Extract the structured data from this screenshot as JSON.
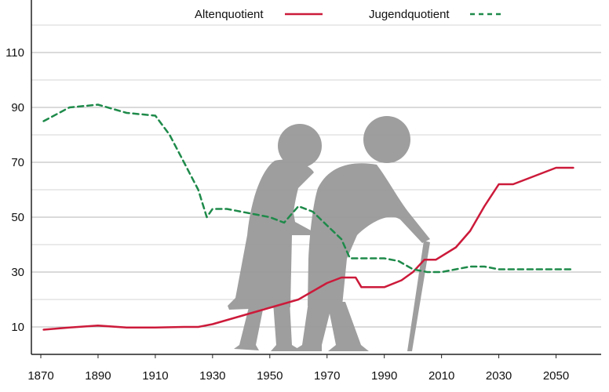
{
  "chart_data": {
    "type": "line",
    "title": "",
    "xlabel": "",
    "ylabel": "",
    "xlim": [
      1870,
      2060
    ],
    "ylim": [
      0,
      130
    ],
    "x_ticks": [
      1870,
      1890,
      1910,
      1930,
      1950,
      1970,
      1990,
      2010,
      2030,
      2050
    ],
    "y_ticks": [
      10,
      30,
      50,
      70,
      90,
      110
    ],
    "grid": "horizontal",
    "legend_position": "top",
    "series": [
      {
        "name": "Altenquotient",
        "color": "#cc1a3a",
        "style": "solid",
        "points": [
          [
            1871,
            9
          ],
          [
            1880,
            9.8
          ],
          [
            1890,
            10.5
          ],
          [
            1900,
            9.8
          ],
          [
            1910,
            9.8
          ],
          [
            1920,
            10
          ],
          [
            1925,
            10
          ],
          [
            1930,
            11
          ],
          [
            1940,
            14
          ],
          [
            1950,
            17
          ],
          [
            1960,
            20
          ],
          [
            1970,
            26
          ],
          [
            1975,
            28
          ],
          [
            1980,
            28
          ],
          [
            1982,
            24.5
          ],
          [
            1990,
            24.5
          ],
          [
            1996,
            27
          ],
          [
            2000,
            30
          ],
          [
            2004,
            34.5
          ],
          [
            2008,
            34.5
          ],
          [
            2015,
            39
          ],
          [
            2020,
            45
          ],
          [
            2025,
            54
          ],
          [
            2030,
            62
          ],
          [
            2035,
            62
          ],
          [
            2040,
            64
          ],
          [
            2045,
            66
          ],
          [
            2050,
            68
          ],
          [
            2056,
            68
          ]
        ]
      },
      {
        "name": "Jugendquotient",
        "color": "#1e8a4a",
        "style": "dashed",
        "points": [
          [
            1871,
            85
          ],
          [
            1880,
            90
          ],
          [
            1890,
            91
          ],
          [
            1900,
            88
          ],
          [
            1910,
            87
          ],
          [
            1915,
            80
          ],
          [
            1920,
            70
          ],
          [
            1925,
            60
          ],
          [
            1928,
            50
          ],
          [
            1930,
            53
          ],
          [
            1935,
            53
          ],
          [
            1940,
            52
          ],
          [
            1945,
            51
          ],
          [
            1950,
            50
          ],
          [
            1955,
            48
          ],
          [
            1960,
            54
          ],
          [
            1965,
            52
          ],
          [
            1970,
            47
          ],
          [
            1975,
            42
          ],
          [
            1978,
            35
          ],
          [
            1985,
            35
          ],
          [
            1990,
            35
          ],
          [
            1995,
            34
          ],
          [
            2000,
            31
          ],
          [
            2005,
            30
          ],
          [
            2010,
            30
          ],
          [
            2015,
            31
          ],
          [
            2020,
            32
          ],
          [
            2025,
            32
          ],
          [
            2030,
            31
          ],
          [
            2035,
            31
          ],
          [
            2040,
            31
          ],
          [
            2045,
            31
          ],
          [
            2050,
            31
          ],
          [
            2056,
            31
          ]
        ]
      }
    ]
  },
  "legend": [
    {
      "label": "Altenquotient"
    },
    {
      "label": "Jugendquotient"
    }
  ],
  "illustration": {
    "icon": "elderly-couple-with-cane-icon",
    "color": "#999999"
  }
}
